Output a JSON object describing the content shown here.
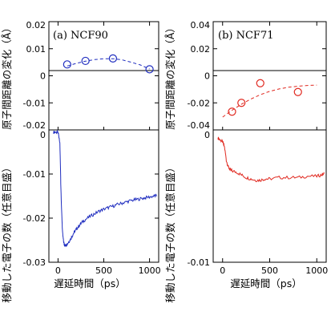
{
  "chart_data": [
    {
      "panel": "(a) NCF90",
      "type": "scatter",
      "title": "(a) NCF90",
      "ylabel": "原子間距離の変化（Å）",
      "ylim": [
        -0.02,
        0.02
      ],
      "yticks": [
        "0.02",
        "0.01",
        "0",
        "-0.01",
        "-0.02"
      ],
      "color": "#1f2dbf",
      "points": {
        "x": [
          100,
          300,
          600,
          1000
        ],
        "y": [
          0.0042,
          0.0055,
          0.0064,
          0.0024
        ]
      },
      "fit_curve": {
        "style": "dashed",
        "x": [
          100,
          200,
          300,
          400,
          500,
          600,
          700,
          800,
          900,
          1000
        ],
        "y": [
          0.0036,
          0.0046,
          0.0054,
          0.006,
          0.0063,
          0.0063,
          0.0059,
          0.005,
          0.004,
          0.0025
        ]
      }
    },
    {
      "panel": "(a) NCF90",
      "type": "line",
      "ylabel": "移動した電子の数（任意目盛）",
      "xlabel": "遅延時間（ps）",
      "xlim": [
        -100,
        1100
      ],
      "xticks": [
        "0",
        "500",
        "1000"
      ],
      "ylim": [
        -0.03,
        0.0
      ],
      "yticks": [
        "0",
        "-0.01",
        "-0.02",
        "-0.03"
      ],
      "color": "#1f2dbf",
      "series": {
        "x": [
          -50,
          -20,
          0,
          20,
          30,
          40,
          50,
          60,
          70,
          80,
          90,
          100,
          120,
          140,
          160,
          180,
          200,
          230,
          260,
          300,
          350,
          400,
          450,
          500,
          550,
          600,
          650,
          700,
          750,
          800,
          850,
          900,
          950,
          1000,
          1050,
          1080
        ],
        "y": [
          -0.0005,
          -0.0005,
          -0.0006,
          -0.003,
          -0.012,
          -0.019,
          -0.0235,
          -0.0253,
          -0.026,
          -0.0262,
          -0.0261,
          -0.0258,
          -0.0253,
          -0.0246,
          -0.0238,
          -0.0231,
          -0.0225,
          -0.0217,
          -0.021,
          -0.0203,
          -0.0196,
          -0.019,
          -0.0184,
          -0.018,
          -0.0176,
          -0.0173,
          -0.0169,
          -0.0166,
          -0.0163,
          -0.016,
          -0.0158,
          -0.0156,
          -0.0154,
          -0.0152,
          -0.015,
          -0.0149
        ]
      }
    },
    {
      "panel": "(b) NCF71",
      "type": "scatter",
      "title": "(b) NCF71",
      "ylabel": "原子間距離の変化（Å）",
      "ylim": [
        -0.04,
        0.04
      ],
      "yticks": [
        "0.04",
        "0.02",
        "0",
        "-0.02",
        "-0.04"
      ],
      "color": "#e0281f",
      "points": {
        "x": [
          100,
          200,
          400,
          800
        ],
        "y": [
          -0.0265,
          -0.02,
          -0.0055,
          -0.012
        ]
      },
      "fit_curve": {
        "style": "dashed",
        "x": [
          0,
          100,
          200,
          300,
          400,
          500,
          600,
          700,
          800,
          900,
          1000
        ],
        "y": [
          -0.0305,
          -0.0255,
          -0.021,
          -0.0172,
          -0.014,
          -0.0115,
          -0.0097,
          -0.0085,
          -0.0077,
          -0.0072,
          -0.0069
        ]
      }
    },
    {
      "panel": "(b) NCF71",
      "type": "line",
      "ylabel": "移動した電子の数（任意目盛）",
      "xlabel": "遅延時間（ps）",
      "xlim": [
        -100,
        1100
      ],
      "xticks": [
        "0",
        "500",
        "1000"
      ],
      "ylim": [
        -0.01,
        0.0
      ],
      "yticks": [
        "0",
        "-0.01"
      ],
      "color": "#e0281f",
      "series": {
        "x": [
          -50,
          -20,
          0,
          20,
          40,
          60,
          80,
          100,
          150,
          200,
          250,
          300,
          350,
          400,
          450,
          500,
          600,
          700,
          800,
          900,
          1000,
          1050,
          1080
        ],
        "y": [
          -0.0006,
          -0.0008,
          -0.0009,
          -0.0013,
          -0.0023,
          -0.0028,
          -0.003,
          -0.0031,
          -0.0032,
          -0.0034,
          -0.0036,
          -0.0037,
          -0.0038,
          -0.0038,
          -0.0037,
          -0.0037,
          -0.0036,
          -0.0036,
          -0.0036,
          -0.0035,
          -0.0035,
          -0.0034,
          -0.0033
        ]
      }
    }
  ]
}
